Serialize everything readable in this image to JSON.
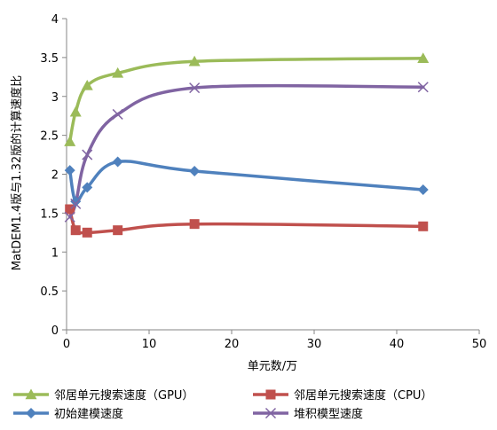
{
  "chart_data": {
    "type": "line",
    "xlabel": "单元数/万",
    "ylabel": "MatDEM1.4版与1.32版的计算速度比",
    "xlim": [
      0,
      50
    ],
    "ylim": [
      0,
      4
    ],
    "xticks": [
      0,
      10,
      20,
      30,
      40,
      50
    ],
    "xtick_labels": [
      "0",
      "10",
      "20",
      "30",
      "40",
      "50"
    ],
    "yticks": [
      0,
      0.5,
      1,
      1.5,
      2,
      2.5,
      3,
      3.5,
      4
    ],
    "ytick_labels": [
      "0",
      "0.5",
      "1",
      "1.5",
      "2",
      "2.5",
      "3",
      "3.5",
      "4"
    ],
    "grid": false,
    "legend_position": "bottom",
    "series": [
      {
        "name": "邻居单元搜索速度（GPU）",
        "color": "#9BBB59",
        "marker": "triangle",
        "x": [
          0.4,
          1.1,
          2.5,
          6.2,
          15.5,
          43.2
        ],
        "y": [
          2.42,
          2.8,
          3.14,
          3.3,
          3.45,
          3.49
        ]
      },
      {
        "name": "邻居单元搜索速度（CPU）",
        "color": "#C0504D",
        "marker": "square",
        "x": [
          0.4,
          1.1,
          2.5,
          6.2,
          15.5,
          43.2
        ],
        "y": [
          1.55,
          1.28,
          1.25,
          1.28,
          1.36,
          1.33
        ]
      },
      {
        "name": "初始建模速度",
        "color": "#4F81BD",
        "marker": "diamond",
        "x": [
          0.4,
          1.1,
          2.5,
          6.2,
          15.5,
          43.2
        ],
        "y": [
          2.05,
          1.65,
          1.83,
          2.16,
          2.04,
          1.8
        ]
      },
      {
        "name": "堆积模型速度",
        "color": "#8064A2",
        "marker": "x",
        "x": [
          0.4,
          1.1,
          2.5,
          6.2,
          15.5,
          43.2
        ],
        "y": [
          1.45,
          1.62,
          2.25,
          2.77,
          3.11,
          3.12
        ]
      }
    ]
  }
}
